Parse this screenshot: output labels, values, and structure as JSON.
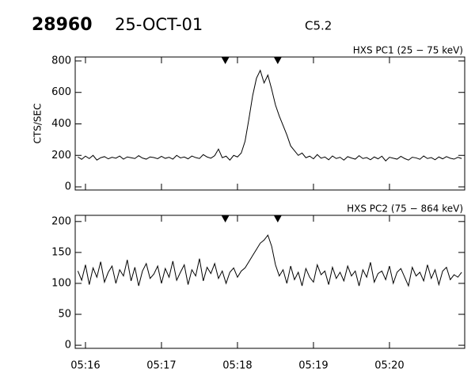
{
  "chart_data": [
    {
      "type": "line",
      "title": "28960",
      "subtitle": "25-OCT-01",
      "annotation": "C5.2",
      "ylabel": "CTS/SEC",
      "x": [
        15.9,
        15.95,
        16.0,
        16.05,
        16.1,
        16.15,
        16.2,
        16.25,
        16.3,
        16.35,
        16.4,
        16.45,
        16.5,
        16.55,
        16.6,
        16.65,
        16.7,
        16.75,
        16.8,
        16.85,
        16.9,
        16.95,
        17.0,
        17.05,
        17.1,
        17.15,
        17.2,
        17.25,
        17.3,
        17.35,
        17.4,
        17.45,
        17.5,
        17.55,
        17.6,
        17.65,
        17.7,
        17.75,
        17.8,
        17.85,
        17.9,
        17.95,
        18.0,
        18.05,
        18.1,
        18.15,
        18.2,
        18.25,
        18.3,
        18.35,
        18.4,
        18.45,
        18.5,
        18.55,
        18.6,
        18.65,
        18.7,
        18.75,
        18.8,
        18.85,
        18.9,
        18.95,
        19.0,
        19.05,
        19.1,
        19.15,
        19.2,
        19.25,
        19.3,
        19.35,
        19.4,
        19.45,
        19.5,
        19.55,
        19.6,
        19.65,
        19.7,
        19.75,
        19.8,
        19.85,
        19.9,
        19.95,
        20.0,
        20.05,
        20.1,
        20.15,
        20.2,
        20.25,
        20.3,
        20.35,
        20.4,
        20.45,
        20.5,
        20.55,
        20.6,
        20.65,
        20.7,
        20.75,
        20.8,
        20.85,
        20.9,
        20.95
      ],
      "series": [
        {
          "name": "HXS PC1 (25 − 75 keV)",
          "color": "#000000",
          "values": [
            190,
            175,
            195,
            180,
            200,
            170,
            185,
            192,
            178,
            188,
            182,
            196,
            176,
            190,
            185,
            180,
            198,
            183,
            176,
            190,
            186,
            179,
            194,
            181,
            188,
            176,
            200,
            184,
            190,
            178,
            196,
            186,
            180,
            205,
            190,
            182,
            198,
            240,
            185,
            195,
            170,
            200,
            190,
            215,
            290,
            430,
            580,
            690,
            740,
            660,
            710,
            620,
            520,
            450,
            390,
            330,
            260,
            230,
            200,
            215,
            185,
            195,
            178,
            205,
            182,
            190,
            172,
            196,
            180,
            188,
            170,
            192,
            183,
            176,
            198,
            180,
            186,
            172,
            190,
            178,
            195,
            165,
            188,
            182,
            176,
            194,
            180,
            170,
            188,
            184,
            175,
            196,
            180,
            186,
            172,
            190,
            178,
            192,
            182,
            176,
            188,
            180
          ]
        }
      ],
      "xlim": [
        15.865,
        20.99
      ],
      "xticks": [
        16,
        17,
        18,
        19,
        20
      ],
      "ylim": [
        -20,
        825
      ],
      "yticks": [
        0,
        200,
        400,
        600,
        800
      ],
      "markers": [
        17.84,
        18.53
      ]
    },
    {
      "type": "line",
      "x": [
        15.9,
        15.95,
        16.0,
        16.05,
        16.1,
        16.15,
        16.2,
        16.25,
        16.3,
        16.35,
        16.4,
        16.45,
        16.5,
        16.55,
        16.6,
        16.65,
        16.7,
        16.75,
        16.8,
        16.85,
        16.9,
        16.95,
        17.0,
        17.05,
        17.1,
        17.15,
        17.2,
        17.25,
        17.3,
        17.35,
        17.4,
        17.45,
        17.5,
        17.55,
        17.6,
        17.65,
        17.7,
        17.75,
        17.8,
        17.85,
        17.9,
        17.95,
        18.0,
        18.05,
        18.1,
        18.15,
        18.2,
        18.25,
        18.3,
        18.35,
        18.4,
        18.45,
        18.5,
        18.55,
        18.6,
        18.65,
        18.7,
        18.75,
        18.8,
        18.85,
        18.9,
        18.95,
        19.0,
        19.05,
        19.1,
        19.15,
        19.2,
        19.25,
        19.3,
        19.35,
        19.4,
        19.45,
        19.5,
        19.55,
        19.6,
        19.65,
        19.7,
        19.75,
        19.8,
        19.85,
        19.9,
        19.95,
        20.0,
        20.05,
        20.1,
        20.15,
        20.2,
        20.25,
        20.3,
        20.35,
        20.4,
        20.45,
        20.5,
        20.55,
        20.6,
        20.65,
        20.7,
        20.75,
        20.8,
        20.85,
        20.9,
        20.95
      ],
      "series": [
        {
          "name": "HXS PC2 (75 − 864 keV)",
          "color": "#000000",
          "values": [
            120,
            105,
            130,
            98,
            125,
            110,
            135,
            102,
            118,
            128,
            100,
            122,
            112,
            138,
            104,
            126,
            96,
            120,
            132,
            108,
            115,
            128,
            100,
            124,
            110,
            136,
            105,
            118,
            130,
            98,
            122,
            112,
            140,
            104,
            126,
            116,
            132,
            108,
            120,
            100,
            118,
            125,
            110,
            120,
            125,
            135,
            145,
            155,
            165,
            170,
            178,
            160,
            130,
            112,
            122,
            100,
            128,
            106,
            118,
            96,
            124,
            110,
            102,
            130,
            114,
            120,
            98,
            126,
            108,
            118,
            104,
            128,
            112,
            120,
            96,
            122,
            110,
            134,
            102,
            116,
            120,
            106,
            128,
            100,
            118,
            124,
            110,
            96,
            126,
            112,
            118,
            104,
            130,
            108,
            122,
            98,
            120,
            126,
            106,
            114,
            110,
            118
          ]
        }
      ],
      "xlim": [
        15.865,
        20.99
      ],
      "xticks": [
        {
          "value": 16,
          "label": "05:16"
        },
        {
          "value": 17,
          "label": "05:17"
        },
        {
          "value": 18,
          "label": "05:18"
        },
        {
          "value": 19,
          "label": "05:19"
        },
        {
          "value": 20,
          "label": "05:20"
        }
      ],
      "ylim": [
        -5,
        210
      ],
      "yticks": [
        0,
        50,
        100,
        150,
        200
      ],
      "markers": [
        17.84,
        18.53
      ]
    }
  ]
}
